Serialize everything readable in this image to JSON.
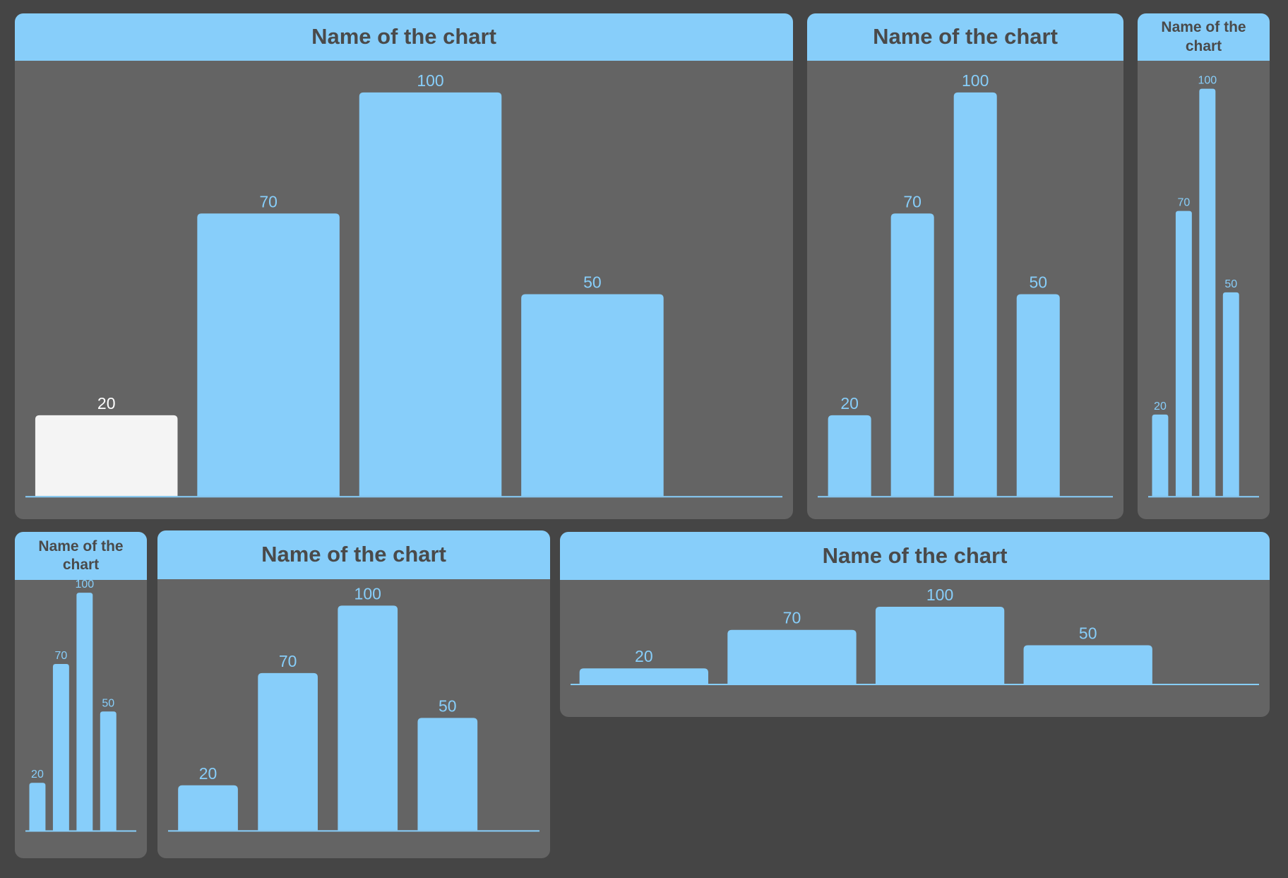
{
  "colors": {
    "page_background": "#454545",
    "panel_background": "#646464",
    "accent": "#87cefa",
    "highlight_bar": "#f4f4f4",
    "title_text": "#4a4a4a",
    "value_label": "#87cefa",
    "highlight_label": "#ffffff"
  },
  "charts": [
    {
      "title": "Name of the chart"
    },
    {
      "title": "Name of the chart"
    },
    {
      "title": "Name of the chart"
    },
    {
      "title": "Name of the chart"
    },
    {
      "title": "Name of the chart"
    },
    {
      "title": "Name of the chart"
    }
  ],
  "chart_data": [
    {
      "type": "bar",
      "title": "Name of the chart",
      "categories": [
        "",
        "",
        "",
        ""
      ],
      "values": [
        20,
        70,
        100,
        50
      ],
      "ylim": [
        0,
        100
      ],
      "highlighted_index": 0,
      "grid": false,
      "legend": "none"
    },
    {
      "type": "bar",
      "title": "Name of the chart",
      "categories": [
        "",
        "",
        "",
        ""
      ],
      "values": [
        20,
        70,
        100,
        50
      ],
      "ylim": [
        0,
        100
      ],
      "grid": false,
      "legend": "none"
    },
    {
      "type": "bar",
      "title": "Name of the chart",
      "categories": [
        "",
        "",
        "",
        ""
      ],
      "values": [
        20,
        70,
        100,
        50
      ],
      "ylim": [
        0,
        100
      ],
      "grid": false,
      "legend": "none"
    },
    {
      "type": "bar",
      "title": "Name of the chart",
      "categories": [
        "",
        "",
        "",
        ""
      ],
      "values": [
        20,
        70,
        100,
        50
      ],
      "ylim": [
        0,
        100
      ],
      "grid": false,
      "legend": "none"
    },
    {
      "type": "bar",
      "title": "Name of the chart",
      "categories": [
        "",
        "",
        "",
        ""
      ],
      "values": [
        20,
        70,
        100,
        50
      ],
      "ylim": [
        0,
        100
      ],
      "grid": false,
      "legend": "none"
    },
    {
      "type": "bar",
      "title": "Name of the chart",
      "categories": [
        "",
        "",
        "",
        ""
      ],
      "values": [
        20,
        70,
        100,
        50
      ],
      "ylim": [
        0,
        100
      ],
      "grid": false,
      "legend": "none"
    }
  ]
}
